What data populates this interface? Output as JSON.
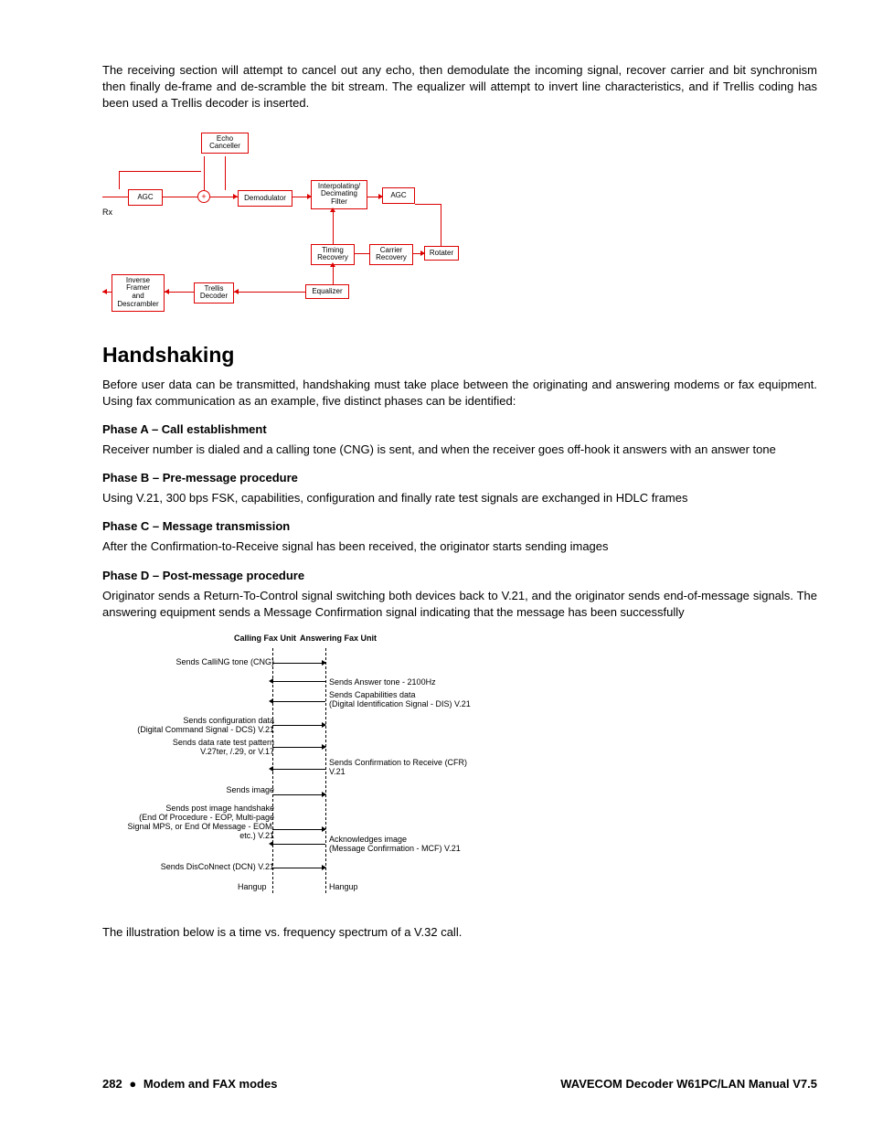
{
  "intro": "The receiving section will attempt to cancel out any echo, then demodulate the incoming signal, recover carrier and bit synchronism then finally de-frame and de-scramble the bit stream. The equalizer will attempt to invert line characteristics, and if Trellis coding has been used a Trellis decoder is inserted.",
  "block": {
    "rx": "Rx",
    "echo": "Echo\nCanceller",
    "agc": "AGC",
    "sum": "+",
    "demod": "Demodulator",
    "filter": "Interpolating/\nDecimating\nFilter",
    "agc2": "AGC",
    "timing": "Timing\nRecovery",
    "carrier": "Carrier\nRecovery",
    "rotater": "Rotater",
    "inverse": "Inverse\nFramer\nand\nDescrambler",
    "trellis": "Trellis\nDecoder",
    "equalizer": "Equalizer"
  },
  "h_title": "Handshaking",
  "h_intro": "Before user data can be transmitted, handshaking must take place between the originating and answering modems or fax equipment. Using fax communication as an example, five distinct phases can be identified:",
  "phaseA": {
    "head": "Phase A – Call establishment",
    "body": "Receiver number is dialed and a calling tone (CNG) is sent, and when the receiver goes off-hook it answers with an answer tone"
  },
  "phaseB": {
    "head": "Phase B – Pre-message procedure",
    "body": "Using V.21, 300 bps FSK, capabilities, configuration and finally rate test signals are exchanged in HDLC frames"
  },
  "phaseC": {
    "head": "Phase C – Message transmission",
    "body": "After the Confirmation-to-Receive signal has been received, the originator starts sending images"
  },
  "phaseD": {
    "head": "Phase D – Post-message procedure",
    "body": "Originator sends a Return-To-Control signal switching both devices back to V.21, and the originator sends end-of-message signals. The answering equipment sends a Message Confirmation signal indicating that the message has been successfully"
  },
  "seq": {
    "call_head": "Calling Fax Unit",
    "ans_head": "Answering Fax Unit",
    "e1": "Sends CalliNG tone (CNG)",
    "e2": "Sends Answer tone - 2100Hz",
    "e3": "Sends Capabilities data\n(Digital Identification Signal - DIS) V.21",
    "e4": "Sends configuration data\n(Digital Command Signal - DCS) V.21",
    "e5": "Sends data rate test pattern\nV.27ter, /.29, or V.17",
    "e6": "Sends Confirmation to Receive (CFR) V.21",
    "e7": "Sends image",
    "e8": "Sends post image handshake\n(End Of Procedure - EOP, Multi-page\nSignal MPS, or End Of Message - EOM,\netc.) V.21",
    "e9": "Acknowledges image\n(Message Confirmation - MCF) V.21",
    "e10": "Sends DisCoNnect (DCN) V.21",
    "hangup": "Hangup"
  },
  "outro": "The illustration below is a time vs. frequency spectrum of a V.32 call.",
  "footer": {
    "page": "282",
    "section": "Modem and FAX modes",
    "title": "WAVECOM Decoder W61PC/LAN Manual V7.5"
  }
}
